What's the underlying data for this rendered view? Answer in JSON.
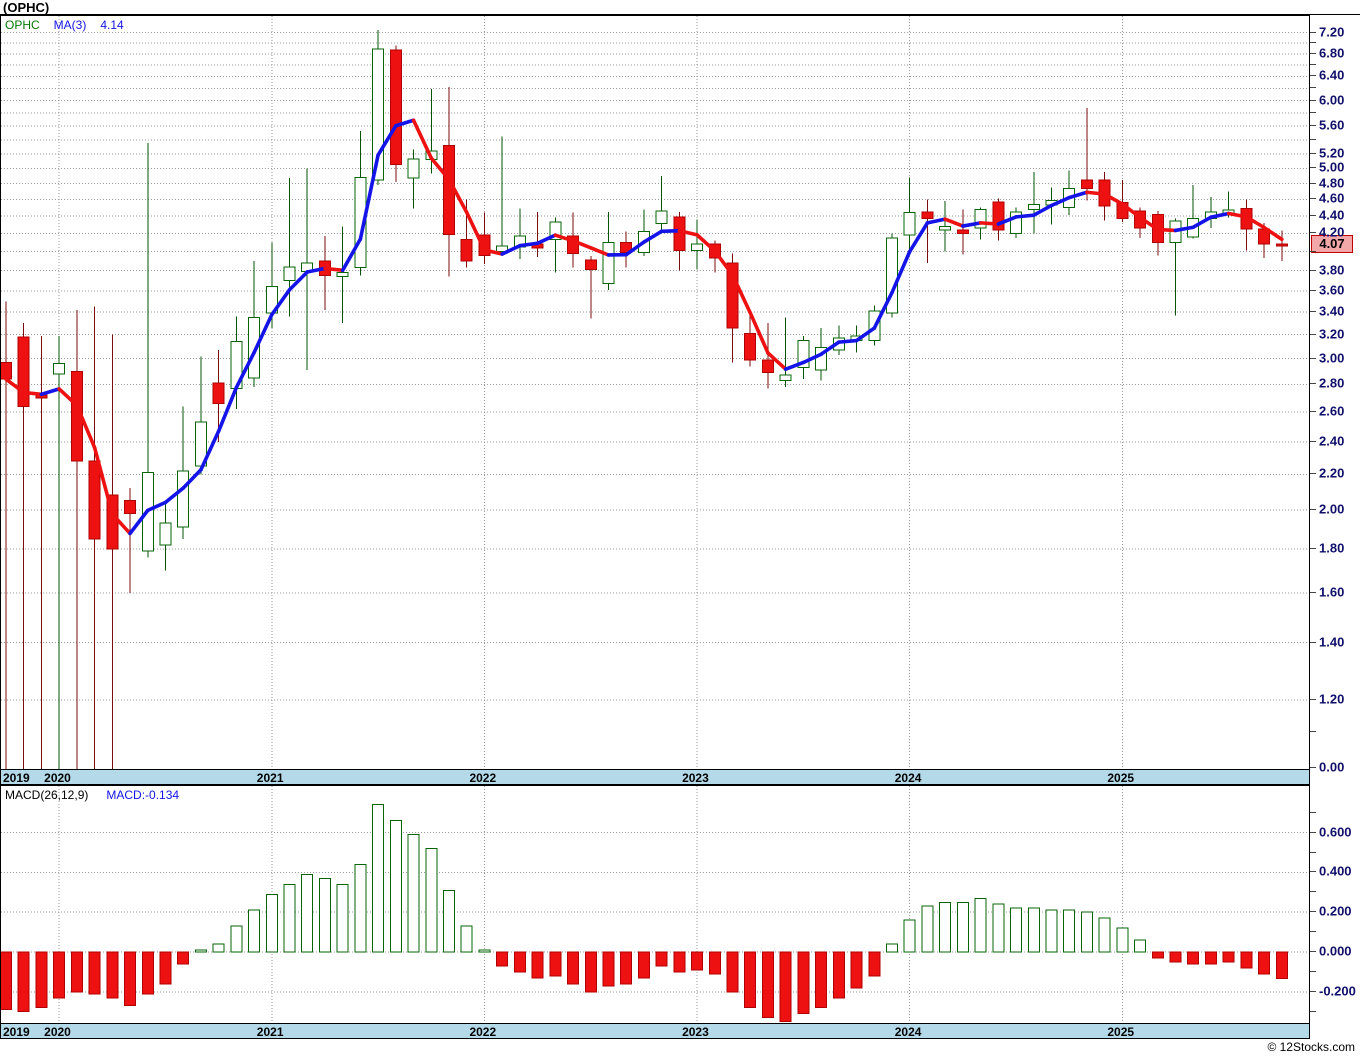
{
  "window": {
    "title": "(OPHC)"
  },
  "legend": {
    "symbol": "OPHC",
    "ma_label": "MA(3)",
    "ma_value": "4.14"
  },
  "macd_legend": {
    "label": "MACD(26,12,9)",
    "value_label": "MACD:-0.134"
  },
  "current_price_badge": "4.07",
  "watermark": "© 12Stocks.com",
  "colors": {
    "band_blue": "#B4DAEA",
    "grid": "#9A9A9A",
    "axis_text": "#10106B",
    "candle_up_stroke": "#066606",
    "candle_up_fill": "#FFFFFF",
    "candle_down_fill": "#EE1111",
    "candle_down_stroke": "#B00000",
    "wick_up": "#055505",
    "wick_down": "#7A0E0E",
    "ma_up": "#1414E8",
    "ma_down": "#EE1111",
    "legend_symbol": "#067806",
    "legend_blue": "#1414E8",
    "badge_bg": "#F2A8A8",
    "badge_border": "#C00000"
  },
  "x_axis": {
    "start_label": "2019",
    "year_ticks": [
      {
        "label": "2020",
        "index": 3
      },
      {
        "label": "2021",
        "index": 15
      },
      {
        "label": "2022",
        "index": 27
      },
      {
        "label": "2023",
        "index": 39
      },
      {
        "label": "2024",
        "index": 51
      },
      {
        "label": "2025",
        "index": 63
      }
    ]
  },
  "chart_data": [
    {
      "type": "candlestick",
      "title": "(OPHC)",
      "ylabel": "price",
      "scale": "log",
      "ylim": [
        1.0,
        7.35
      ],
      "grid": true,
      "y_labels": [
        {
          "t": "7.20",
          "v": 7.2
        },
        {
          "t": "6.80",
          "v": 6.8
        },
        {
          "t": "6.40",
          "v": 6.4
        },
        {
          "t": "6.00",
          "v": 6.0
        },
        {
          "t": "5.60",
          "v": 5.6
        },
        {
          "t": "5.20",
          "v": 5.2
        },
        {
          "t": "5.00",
          "v": 5.0
        },
        {
          "t": "4.80",
          "v": 4.8
        },
        {
          "t": "4.60",
          "v": 4.6
        },
        {
          "t": "4.40",
          "v": 4.4
        },
        {
          "t": "4.20",
          "v": 4.2
        },
        {
          "t": "3.80",
          "v": 3.8
        },
        {
          "t": "3.60",
          "v": 3.6
        },
        {
          "t": "3.40",
          "v": 3.4
        },
        {
          "t": "3.20",
          "v": 3.2
        },
        {
          "t": "3.00",
          "v": 3.0
        },
        {
          "t": "2.80",
          "v": 2.8
        },
        {
          "t": "2.60",
          "v": 2.6
        },
        {
          "t": "2.40",
          "v": 2.4
        },
        {
          "t": "2.20",
          "v": 2.2
        },
        {
          "t": "2.00",
          "v": 2.0
        },
        {
          "t": "1.80",
          "v": 1.8
        },
        {
          "t": "1.60",
          "v": 1.6
        },
        {
          "t": "1.40",
          "v": 1.4
        },
        {
          "t": "1.20",
          "v": 1.2
        },
        {
          "t": "0.00",
          "v": 1.0
        }
      ],
      "overlay": {
        "name": "MA(3)",
        "window": 3,
        "last_value": 4.14
      },
      "last_close": 4.07,
      "candles": [
        [
          "2019-10",
          2.97,
          3.5,
          0,
          2.84
        ],
        [
          "2019-11",
          3.18,
          3.3,
          0,
          2.64
        ],
        [
          "2019-12",
          2.72,
          3.19,
          0,
          2.7
        ],
        [
          "2020-01",
          2.88,
          3.19,
          0,
          2.96
        ],
        [
          "2020-02",
          2.9,
          3.42,
          0,
          2.28
        ],
        [
          "2020-03",
          2.28,
          3.45,
          0,
          1.85
        ],
        [
          "2020-04",
          2.08,
          3.2,
          0,
          1.8
        ],
        [
          "2020-05",
          2.05,
          2.12,
          1.6,
          1.98
        ],
        [
          "2020-06",
          1.79,
          5.35,
          1.76,
          2.21
        ],
        [
          "2020-07",
          1.82,
          2.05,
          1.7,
          1.93
        ],
        [
          "2020-08",
          1.91,
          2.64,
          1.85,
          2.22
        ],
        [
          "2020-09",
          2.25,
          3.02,
          2.2,
          2.53
        ],
        [
          "2020-10",
          2.81,
          3.07,
          2.4,
          2.66
        ],
        [
          "2020-11",
          2.77,
          3.36,
          2.62,
          3.14
        ],
        [
          "2020-12",
          2.85,
          3.9,
          2.78,
          3.35
        ],
        [
          "2021-01",
          3.39,
          4.1,
          3.26,
          3.64
        ],
        [
          "2021-02",
          3.7,
          4.87,
          3.36,
          3.84
        ],
        [
          "2021-03",
          3.79,
          5.0,
          2.91,
          3.88
        ],
        [
          "2021-04",
          3.9,
          4.17,
          3.42,
          3.75
        ],
        [
          "2021-05",
          3.74,
          4.28,
          3.3,
          3.78
        ],
        [
          "2021-06",
          3.83,
          5.53,
          3.75,
          4.88
        ],
        [
          "2021-07",
          4.85,
          7.25,
          4.78,
          6.89
        ],
        [
          "2021-08",
          6.87,
          6.95,
          4.82,
          5.05
        ],
        [
          "2021-09",
          4.87,
          5.26,
          4.49,
          5.13
        ],
        [
          "2021-10",
          5.12,
          6.19,
          4.93,
          5.24
        ],
        [
          "2021-11",
          5.32,
          6.22,
          3.74,
          4.19
        ],
        [
          "2021-12",
          4.13,
          4.6,
          3.83,
          3.9
        ],
        [
          "2022-01",
          4.18,
          4.44,
          3.87,
          3.96
        ],
        [
          "2022-02",
          4.0,
          5.45,
          3.96,
          4.06
        ],
        [
          "2022-03",
          4.05,
          4.49,
          3.92,
          4.17
        ],
        [
          "2022-04",
          4.08,
          4.45,
          3.94,
          4.04
        ],
        [
          "2022-05",
          4.13,
          4.38,
          3.78,
          4.33
        ],
        [
          "2022-06",
          4.17,
          4.44,
          3.83,
          3.98
        ],
        [
          "2022-07",
          3.91,
          3.95,
          3.34,
          3.81
        ],
        [
          "2022-08",
          3.67,
          4.45,
          3.61,
          4.1
        ],
        [
          "2022-09",
          4.1,
          4.22,
          3.83,
          3.99
        ],
        [
          "2022-10",
          3.99,
          4.48,
          3.95,
          4.22
        ],
        [
          "2022-11",
          4.31,
          4.9,
          4.2,
          4.46
        ],
        [
          "2022-12",
          4.39,
          4.45,
          3.8,
          4.01
        ],
        [
          "2023-01",
          4.01,
          4.36,
          3.81,
          4.08
        ],
        [
          "2023-02",
          4.08,
          4.12,
          3.78,
          3.93
        ],
        [
          "2023-03",
          3.88,
          3.98,
          2.97,
          3.26
        ],
        [
          "2023-04",
          3.21,
          3.39,
          2.94,
          2.99
        ],
        [
          "2023-05",
          2.99,
          3.3,
          2.77,
          2.89
        ],
        [
          "2023-06",
          2.83,
          3.35,
          2.78,
          2.87
        ],
        [
          "2023-07",
          2.93,
          3.19,
          2.84,
          3.15
        ],
        [
          "2023-08",
          2.91,
          3.26,
          2.83,
          3.09
        ],
        [
          "2023-09",
          3.07,
          3.28,
          3.03,
          3.17
        ],
        [
          "2023-10",
          3.15,
          3.28,
          3.05,
          3.19
        ],
        [
          "2023-11",
          3.15,
          3.46,
          3.11,
          3.41
        ],
        [
          "2023-12",
          3.39,
          4.2,
          3.35,
          4.15
        ],
        [
          "2024-01",
          4.18,
          4.88,
          3.96,
          4.44
        ],
        [
          "2024-02",
          4.45,
          4.6,
          3.88,
          4.37
        ],
        [
          "2024-03",
          4.24,
          4.58,
          4.0,
          4.28
        ],
        [
          "2024-04",
          4.24,
          4.48,
          3.97,
          4.2
        ],
        [
          "2024-05",
          4.26,
          4.5,
          4.13,
          4.48
        ],
        [
          "2024-06",
          4.57,
          4.61,
          4.12,
          4.24
        ],
        [
          "2024-07",
          4.2,
          4.5,
          4.15,
          4.45
        ],
        [
          "2024-08",
          4.48,
          4.95,
          4.2,
          4.54
        ],
        [
          "2024-09",
          4.53,
          4.75,
          4.3,
          4.59
        ],
        [
          "2024-10",
          4.5,
          4.97,
          4.41,
          4.74
        ],
        [
          "2024-11",
          4.85,
          5.88,
          4.59,
          4.74
        ],
        [
          "2024-12",
          4.85,
          4.95,
          4.35,
          4.52
        ],
        [
          "2025-01",
          4.56,
          4.85,
          4.33,
          4.37
        ],
        [
          "2025-02",
          4.46,
          4.5,
          4.15,
          4.26
        ],
        [
          "2025-03",
          4.42,
          4.46,
          3.96,
          4.1
        ],
        [
          "2025-04",
          4.1,
          4.37,
          3.37,
          4.34
        ],
        [
          "2025-05",
          4.16,
          4.78,
          4.14,
          4.37
        ],
        [
          "2025-06",
          4.37,
          4.63,
          4.26,
          4.45
        ],
        [
          "2025-07",
          4.42,
          4.7,
          4.38,
          4.47
        ],
        [
          "2025-08",
          4.49,
          4.6,
          4.01,
          4.25
        ],
        [
          "2025-09",
          4.25,
          4.32,
          3.93,
          4.08
        ],
        [
          "2025-10",
          4.08,
          4.23,
          3.9,
          4.07
        ]
      ]
    },
    {
      "type": "bar",
      "title": "MACD(26,12,9)",
      "ylabel": "MACD",
      "last_value": -0.134,
      "grid": true,
      "y_labels": [
        {
          "t": "0.600",
          "v": 0.6
        },
        {
          "t": "0.400",
          "v": 0.4
        },
        {
          "t": "0.200",
          "v": 0.2
        },
        {
          "t": "0.000",
          "v": 0.0
        },
        {
          "t": "-0.200",
          "v": -0.2
        }
      ],
      "values": [
        -0.29,
        -0.3,
        -0.28,
        -0.23,
        -0.2,
        -0.21,
        -0.23,
        -0.27,
        -0.21,
        -0.16,
        -0.06,
        0.01,
        0.04,
        0.13,
        0.21,
        0.29,
        0.34,
        0.39,
        0.37,
        0.34,
        0.44,
        0.74,
        0.66,
        0.59,
        0.52,
        0.31,
        0.13,
        0.01,
        -0.07,
        -0.1,
        -0.13,
        -0.12,
        -0.16,
        -0.2,
        -0.17,
        -0.16,
        -0.13,
        -0.07,
        -0.1,
        -0.09,
        -0.11,
        -0.2,
        -0.28,
        -0.33,
        -0.35,
        -0.31,
        -0.28,
        -0.23,
        -0.18,
        -0.12,
        0.04,
        0.16,
        0.23,
        0.25,
        0.25,
        0.27,
        0.24,
        0.22,
        0.22,
        0.21,
        0.21,
        0.2,
        0.17,
        0.12,
        0.06,
        -0.03,
        -0.05,
        -0.06,
        -0.06,
        -0.05,
        -0.08,
        -0.11,
        -0.134
      ]
    }
  ]
}
